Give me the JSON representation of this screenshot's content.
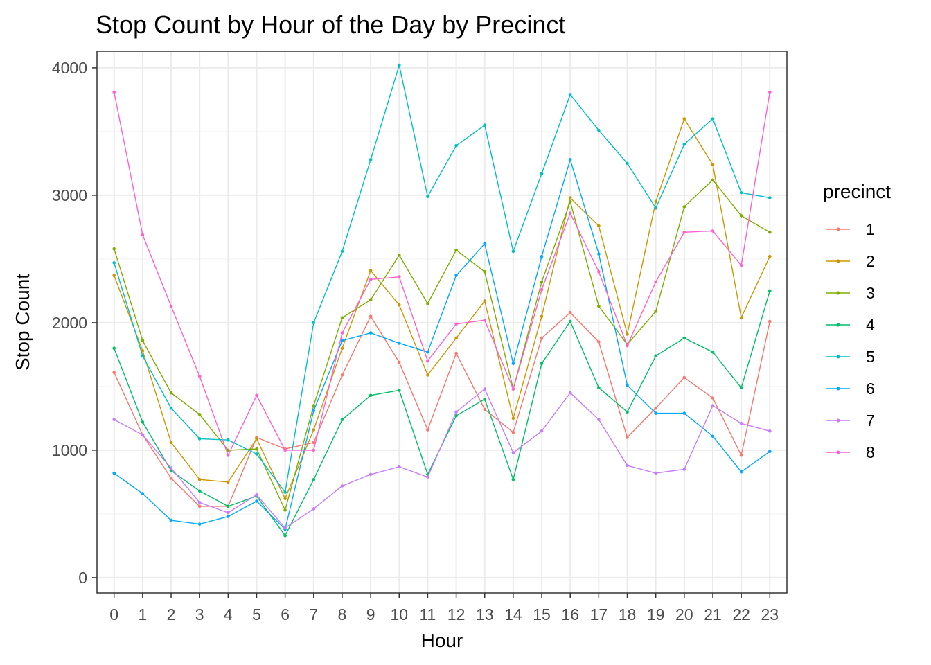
{
  "chart_data": {
    "type": "line",
    "title": "Stop Count by Hour of the Day by Precinct",
    "xlabel": "Hour",
    "ylabel": "Stop Count",
    "x": [
      0,
      1,
      2,
      3,
      4,
      5,
      6,
      7,
      8,
      9,
      10,
      11,
      12,
      13,
      14,
      15,
      16,
      17,
      18,
      19,
      20,
      21,
      22,
      23
    ],
    "xticks": [
      "0",
      "1",
      "2",
      "3",
      "4",
      "5",
      "6",
      "7",
      "8",
      "9",
      "10",
      "11",
      "12",
      "13",
      "14",
      "15",
      "16",
      "17",
      "18",
      "19",
      "20",
      "21",
      "22",
      "23"
    ],
    "xlim": [
      -0.6,
      23.6
    ],
    "ylim": [
      -120,
      4130
    ],
    "yticks": [
      0,
      1000,
      2000,
      3000,
      4000
    ],
    "ytick_labels": [
      "0",
      "1000",
      "2000",
      "3000",
      "4000"
    ],
    "grid": true,
    "legend": {
      "title": "precinct",
      "placement": "right"
    },
    "series": [
      {
        "name": "1",
        "color": "#F8766D",
        "values": [
          1610,
          1120,
          780,
          560,
          560,
          1100,
          1010,
          1060,
          1590,
          2050,
          1690,
          1160,
          1760,
          1320,
          1140,
          1880,
          2080,
          1850,
          1100,
          1330,
          1570,
          1410,
          960,
          2010
        ]
      },
      {
        "name": "2",
        "color": "#CD9600",
        "values": [
          2370,
          1780,
          1060,
          770,
          750,
          1090,
          620,
          1160,
          1800,
          2410,
          2140,
          1590,
          1880,
          2170,
          1250,
          2050,
          2980,
          2760,
          1910,
          2950,
          3600,
          3240,
          2040,
          2520
        ]
      },
      {
        "name": "3",
        "color": "#7CAE00",
        "values": [
          2580,
          1860,
          1450,
          1280,
          1000,
          1010,
          530,
          1350,
          2040,
          2180,
          2530,
          2150,
          2570,
          2400,
          1480,
          2320,
          2950,
          2130,
          1830,
          2090,
          2910,
          3120,
          2840,
          2710
        ]
      },
      {
        "name": "4",
        "color": "#00BE67",
        "values": [
          1800,
          1220,
          840,
          680,
          560,
          640,
          330,
          770,
          1240,
          1430,
          1470,
          810,
          1270,
          1400,
          770,
          1680,
          2010,
          1490,
          1300,
          1740,
          1880,
          1770,
          1490,
          2250
        ]
      },
      {
        "name": "5",
        "color": "#00BFC4",
        "values": [
          2470,
          1740,
          1330,
          1090,
          1080,
          970,
          670,
          2000,
          2560,
          3280,
          4020,
          2990,
          3390,
          3550,
          2560,
          3170,
          3790,
          3510,
          3250,
          2900,
          3400,
          3600,
          3020,
          2980
        ]
      },
      {
        "name": "6",
        "color": "#00A9FF",
        "values": [
          820,
          660,
          450,
          420,
          480,
          600,
          380,
          1310,
          1860,
          1920,
          1840,
          1770,
          2370,
          2620,
          1680,
          2520,
          3280,
          2540,
          1510,
          1290,
          1290,
          1110,
          830,
          990
        ]
      },
      {
        "name": "7",
        "color": "#C77CFF",
        "values": [
          1240,
          1120,
          860,
          590,
          510,
          650,
          390,
          540,
          720,
          810,
          870,
          790,
          1300,
          1480,
          980,
          1150,
          1450,
          1240,
          880,
          820,
          850,
          1350,
          1210,
          1150
        ]
      },
      {
        "name": "8",
        "color": "#FF61CC",
        "values": [
          3810,
          2690,
          2130,
          1580,
          960,
          1430,
          1000,
          1000,
          1920,
          2340,
          2360,
          1700,
          1990,
          2020,
          1480,
          2260,
          2860,
          2400,
          1820,
          2320,
          2710,
          2720,
          2450,
          3810
        ]
      }
    ]
  }
}
